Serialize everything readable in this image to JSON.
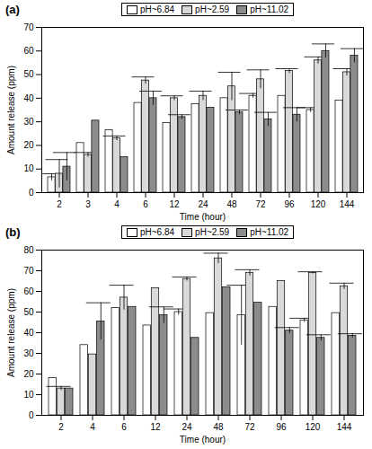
{
  "chart_data": [
    {
      "type": "bar",
      "title": "(a)",
      "x_label": "Time (hour)",
      "y_label": "Amount release (ppm)",
      "categories": [
        2,
        3,
        4,
        6,
        12,
        24,
        48,
        72,
        96,
        120,
        144
      ],
      "series": [
        {
          "name": "pH~6.84",
          "color": "#ffffff",
          "values": [
            6.5,
            21,
            26.5,
            38,
            29.5,
            37.5,
            40,
            41,
            41,
            35,
            39
          ],
          "errors": [
            1.5,
            null,
            null,
            null,
            null,
            null,
            null,
            1,
            null,
            1,
            null
          ]
        },
        {
          "name": "pH~2.59",
          "color": "#d9d9d9",
          "values": [
            8,
            16,
            23,
            47.5,
            40,
            41,
            45,
            48,
            51.5,
            56,
            51
          ],
          "errors": [
            6,
            1,
            1,
            1.5,
            1,
            2,
            6,
            4,
            1,
            1.5,
            1.5
          ]
        },
        {
          "name": "pH~11.02",
          "color": "#8c8c8c",
          "values": [
            11,
            30.5,
            15,
            40,
            32,
            36,
            34,
            31,
            33,
            60,
            58
          ],
          "errors": [
            6,
            null,
            null,
            3,
            1,
            null,
            1,
            3,
            3,
            3,
            3
          ]
        }
      ],
      "ylim": [
        0,
        70
      ],
      "yticks": [
        0,
        10,
        20,
        30,
        40,
        50,
        60,
        70
      ],
      "legend": "top"
    },
    {
      "type": "bar",
      "title": "(b)",
      "x_label": "Time (hour)",
      "y_label": "Amount release (ppm)",
      "categories": [
        2,
        4,
        6,
        12,
        24,
        48,
        72,
        96,
        120,
        144
      ],
      "series": [
        {
          "name": "pH~6.84",
          "color": "#ffffff",
          "values": [
            18,
            34,
            52,
            43.5,
            50,
            49.5,
            48.5,
            52.5,
            46,
            49.5
          ],
          "errors": [
            null,
            null,
            null,
            null,
            1.5,
            null,
            14.5,
            null,
            1,
            null
          ]
        },
        {
          "name": "pH~2.59",
          "color": "#d9d9d9",
          "values": [
            13,
            29.5,
            57,
            61.5,
            66,
            76,
            69,
            65,
            69,
            62.5
          ],
          "errors": [
            1,
            null,
            6,
            null,
            1,
            2.5,
            1.5,
            null,
            0.5,
            1.5
          ]
        },
        {
          "name": "pH~11.02",
          "color": "#8c8c8c",
          "values": [
            13,
            45.5,
            52.5,
            48.5,
            37.5,
            62,
            54.5,
            41,
            37.5,
            38.5
          ],
          "errors": [
            null,
            9,
            null,
            4,
            null,
            null,
            null,
            1.5,
            1.5,
            1
          ]
        }
      ],
      "ylim": [
        0,
        80
      ],
      "yticks": [
        0,
        10,
        20,
        30,
        40,
        50,
        60,
        70,
        80
      ],
      "legend": "top"
    }
  ]
}
